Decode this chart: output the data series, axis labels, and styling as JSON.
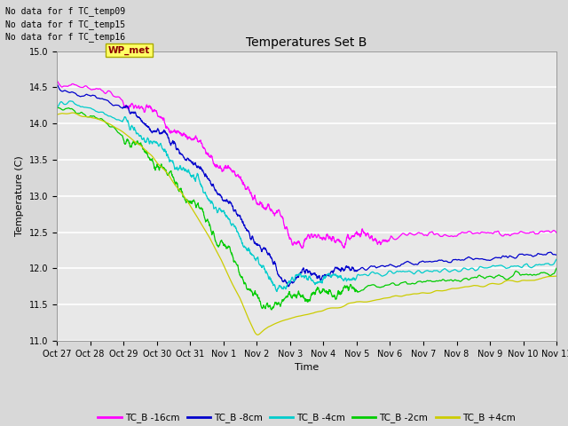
{
  "title": "Temperatures Set B",
  "xlabel": "Time",
  "ylabel": "Temperature (C)",
  "ylim": [
    11.0,
    15.0
  ],
  "yticks": [
    11.0,
    11.5,
    12.0,
    12.5,
    13.0,
    13.5,
    14.0,
    14.5,
    15.0
  ],
  "xtick_labels": [
    "Oct 27",
    "Oct 28",
    "Oct 29",
    "Oct 30",
    "Oct 31",
    "Nov 1",
    "Nov 2",
    "Nov 3",
    "Nov 4",
    "Nov 5",
    "Nov 6",
    "Nov 7",
    "Nov 8",
    "Nov 9",
    "Nov 10",
    "Nov 11"
  ],
  "series": [
    {
      "label": "TC_B -16cm",
      "color": "#ff00ff"
    },
    {
      "label": "TC_B -8cm",
      "color": "#0000cc"
    },
    {
      "label": "TC_B -4cm",
      "color": "#00cccc"
    },
    {
      "label": "TC_B -2cm",
      "color": "#00cc00"
    },
    {
      "label": "TC_B +4cm",
      "color": "#cccc00"
    }
  ],
  "annotations": [
    "No data for f TC_temp09",
    "No data for f TC_temp15",
    "No data for f TC_temp16"
  ],
  "wp_met_label": "WP_met",
  "bg_color": "#d8d8d8",
  "plot_bg_color": "#e8e8e8",
  "grid_color": "#ffffff",
  "n_points": 2000
}
